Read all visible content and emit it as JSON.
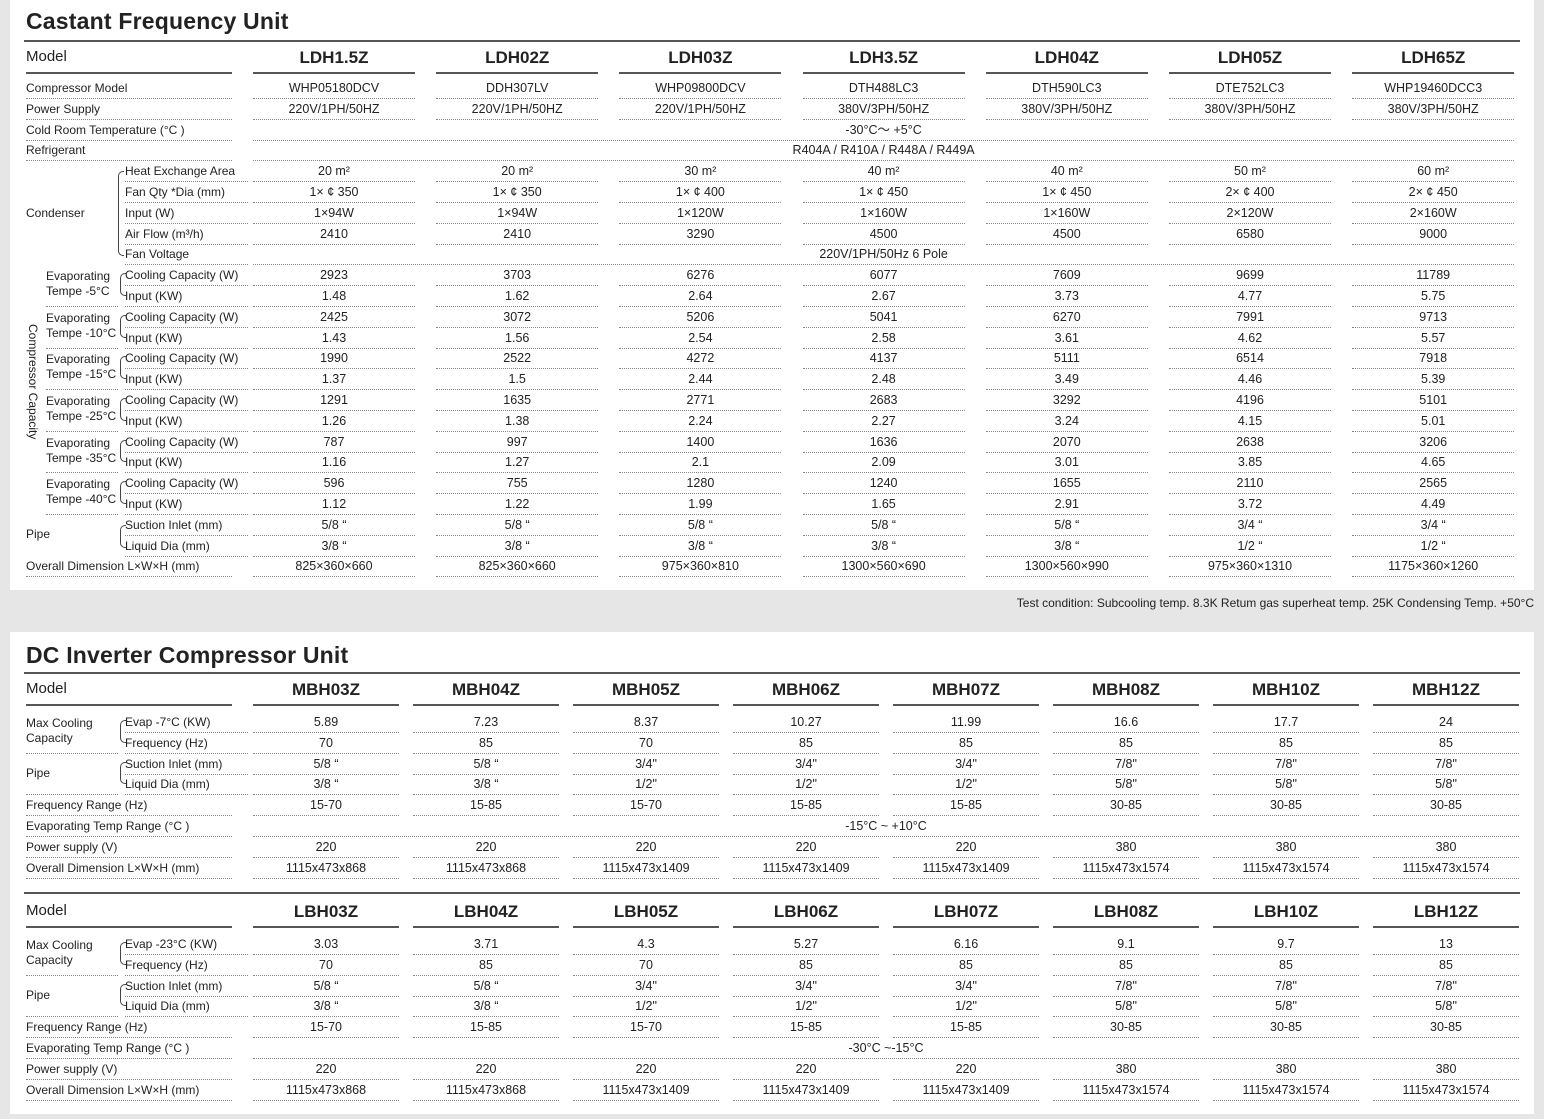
{
  "unit1": {
    "title": "Castant Frequency Unit",
    "model_label": "Model",
    "models": [
      "LDH1.5Z",
      "LDH02Z",
      "LDH03Z",
      "LDH3.5Z",
      "LDH04Z",
      "LDH05Z",
      "LDH65Z"
    ],
    "rows": [
      {
        "label": "Compressor Model",
        "values": [
          "WHP05180DCV",
          "DDH307LV",
          "WHP09800DCV",
          "DTH488LC3",
          "DTH590LC3",
          "DTE752LC3",
          "WHP19460DCC3"
        ]
      },
      {
        "label": "Power Supply",
        "values": [
          "220V/1PH/50HZ",
          "220V/1PH/50HZ",
          "220V/1PH/50HZ",
          "380V/3PH/50HZ",
          "380V/3PH/50HZ",
          "380V/3PH/50HZ",
          "380V/3PH/50HZ"
        ]
      },
      {
        "label": "Cold Room Temperature (°C )",
        "span": "-30°C～ +5°C"
      },
      {
        "label": "Refrigerant",
        "span": "R404A / R410A / R448A / R449A"
      },
      {
        "sub": "Heat Exchange Area",
        "values": [
          "20 m²",
          "20 m²",
          "30 m²",
          "40 m²",
          "40 m²",
          "50 m²",
          "60 m²"
        ]
      },
      {
        "sub": "Fan Qty *Dia (mm)",
        "values": [
          "1× ¢ 350",
          "1× ¢ 350",
          "1× ¢ 400",
          "1× ¢ 450",
          "1× ¢ 450",
          "2× ¢ 400",
          "2× ¢ 450"
        ]
      },
      {
        "sub": "Input (W)",
        "values": [
          "1×94W",
          "1×94W",
          "1×120W",
          "1×160W",
          "1×160W",
          "2×120W",
          "2×160W"
        ]
      },
      {
        "sub": "Air Flow (m³/h)",
        "values": [
          "2410",
          "2410",
          "3290",
          "4500",
          "4500",
          "6580",
          "9000"
        ]
      },
      {
        "sub": "Fan Voltage",
        "span": "220V/1PH/50Hz 6 Pole"
      },
      {
        "sub": "Cooling Capacity (W)",
        "values": [
          "2923",
          "3703",
          "6276",
          "6077",
          "7609",
          "9699",
          "11789"
        ]
      },
      {
        "sub": "Input (KW)",
        "values": [
          "1.48",
          "1.62",
          "2.64",
          "2.67",
          "3.73",
          "4.77",
          "5.75"
        ]
      },
      {
        "sub": "Cooling Capacity (W)",
        "values": [
          "2425",
          "3072",
          "5206",
          "5041",
          "6270",
          "7991",
          "9713"
        ]
      },
      {
        "sub": "Input (KW)",
        "values": [
          "1.43",
          "1.56",
          "2.54",
          "2.58",
          "3.61",
          "4.62",
          "5.57"
        ]
      },
      {
        "sub": "Cooling Capacity (W)",
        "values": [
          "1990",
          "2522",
          "4272",
          "4137",
          "5111",
          "6514",
          "7918"
        ]
      },
      {
        "sub": "Input (KW)",
        "values": [
          "1.37",
          "1.5",
          "2.44",
          "2.48",
          "3.49",
          "4.46",
          "5.39"
        ]
      },
      {
        "sub": "Cooling Capacity (W)",
        "values": [
          "1291",
          "1635",
          "2771",
          "2683",
          "3292",
          "4196",
          "5101"
        ]
      },
      {
        "sub": "Input (KW)",
        "values": [
          "1.26",
          "1.38",
          "2.24",
          "2.27",
          "3.24",
          "4.15",
          "5.01"
        ]
      },
      {
        "sub": "Cooling Capacity (W)",
        "values": [
          "787",
          "997",
          "1400",
          "1636",
          "2070",
          "2638",
          "3206"
        ]
      },
      {
        "sub": "Input (KW)",
        "values": [
          "1.16",
          "1.27",
          "2.1",
          "2.09",
          "3.01",
          "3.85",
          "4.65"
        ]
      },
      {
        "sub": "Cooling Capacity (W)",
        "values": [
          "596",
          "755",
          "1280",
          "1240",
          "1655",
          "2110",
          "2565"
        ]
      },
      {
        "sub": "Input (KW)",
        "values": [
          "1.12",
          "1.22",
          "1.99",
          "1.65",
          "2.91",
          "3.72",
          "4.49"
        ]
      },
      {
        "sub": "Suction Inlet (mm)",
        "values": [
          "5/8 “",
          "5/8 “",
          "5/8 “",
          "5/8 “",
          "5/8 “",
          "3/4 “",
          "3/4 “"
        ]
      },
      {
        "sub": "Liquid Dia (mm)",
        "values": [
          "3/8 “",
          "3/8 “",
          "3/8 “",
          "3/8 “",
          "3/8 “",
          "1/2 “",
          "1/2 “"
        ]
      },
      {
        "label": "Overall Dimension L×W×H (mm)",
        "values": [
          "825×360×660",
          "825×360×660",
          "975×360×810",
          "1300×560×690",
          "1300×560×990",
          "975×360×1310",
          "1175×360×1260"
        ]
      }
    ],
    "groups": {
      "condenser": "Condenser",
      "compressor_capacity": "Compressor Capacity",
      "pipe": "Pipe",
      "evap": [
        [
          "Evaporating",
          "Tempe -5°C"
        ],
        [
          "Evaporating",
          "Tempe -10°C"
        ],
        [
          "Evaporating",
          "Tempe -15°C"
        ],
        [
          "Evaporating",
          "Tempe -25°C"
        ],
        [
          "Evaporating",
          "Tempe -35°C"
        ],
        [
          "Evaporating",
          "Tempe -40°C"
        ]
      ]
    },
    "note": "Test condition: Subcooling temp. 8.3K   Retum gas superheat temp. 25K    Condensing Temp. +50°C"
  },
  "unit2": {
    "title": "DC Inverter Compressor Unit",
    "tables": [
      {
        "model_label": "Model",
        "models": [
          "MBH03Z",
          "MBH04Z",
          "MBH05Z",
          "MBH06Z",
          "MBH07Z",
          "MBH08Z",
          "MBH10Z",
          "MBH12Z"
        ],
        "group_max": [
          "Max Cooling",
          "Capacity"
        ],
        "group_pipe": "Pipe",
        "rows": [
          {
            "sub": "Evap -7°C (KW)",
            "values": [
              "5.89",
              "7.23",
              "8.37",
              "10.27",
              "11.99",
              "16.6",
              "17.7",
              "24"
            ]
          },
          {
            "sub": "Frequency (Hz)",
            "values": [
              "70",
              "85",
              "70",
              "85",
              "85",
              "85",
              "85",
              "85"
            ]
          },
          {
            "sub": "Suction Inlet (mm)",
            "values": [
              "5/8 “",
              "5/8 “",
              "3/4\"",
              "3/4\"",
              "3/4\"",
              "7/8\"",
              "7/8\"",
              "7/8\""
            ]
          },
          {
            "sub": "Liquid Dia (mm)",
            "values": [
              "3/8 “",
              "3/8 “",
              "1/2\"",
              "1/2\"",
              "1/2\"",
              "5/8\"",
              "5/8\"",
              "5/8\""
            ]
          },
          {
            "label": "Frequency Range (Hz)",
            "values": [
              "15-70",
              "15-85",
              "15-70",
              "15-85",
              "15-85",
              "30-85",
              "30-85",
              "30-85"
            ]
          },
          {
            "label": "Evaporating Temp Range (°C )",
            "span": "-15°C ~ +10°C"
          },
          {
            "label": "Power supply (V)",
            "values": [
              "220",
              "220",
              "220",
              "220",
              "220",
              "380",
              "380",
              "380"
            ]
          },
          {
            "label": "Overall Dimension L×W×H (mm)",
            "values": [
              "1115x473x868",
              "1115x473x868",
              "1115x473x1409",
              "1115x473x1409",
              "1115x473x1409",
              "1115x473x1574",
              "1115x473x1574",
              "1115x473x1574"
            ]
          }
        ]
      },
      {
        "model_label": "Model",
        "models": [
          "LBH03Z",
          "LBH04Z",
          "LBH05Z",
          "LBH06Z",
          "LBH07Z",
          "LBH08Z",
          "LBH10Z",
          "LBH12Z"
        ],
        "group_max": [
          "Max Cooling",
          "Capacity"
        ],
        "group_pipe": "Pipe",
        "rows": [
          {
            "sub": "Evap -23°C (KW)",
            "values": [
              "3.03",
              "3.71",
              "4.3",
              "5.27",
              "6.16",
              "9.1",
              "9.7",
              "13"
            ]
          },
          {
            "sub": "Frequency (Hz)",
            "values": [
              "70",
              "85",
              "70",
              "85",
              "85",
              "85",
              "85",
              "85"
            ]
          },
          {
            "sub": "Suction Inlet (mm)",
            "values": [
              "5/8 “",
              "5/8 “",
              "3/4\"",
              "3/4\"",
              "3/4\"",
              "7/8\"",
              "7/8\"",
              "7/8\""
            ]
          },
          {
            "sub": "Liquid Dia (mm)",
            "values": [
              "3/8 “",
              "3/8 “",
              "1/2\"",
              "1/2\"",
              "1/2\"",
              "5/8\"",
              "5/8\"",
              "5/8\""
            ]
          },
          {
            "label": "Frequency Range (Hz)",
            "values": [
              "15-70",
              "15-85",
              "15-70",
              "15-85",
              "15-85",
              "30-85",
              "30-85",
              "30-85"
            ]
          },
          {
            "label": "Evaporating Temp Range (°C )",
            "span": "-30°C ~-15°C"
          },
          {
            "label": "Power supply (V)",
            "values": [
              "220",
              "220",
              "220",
              "220",
              "220",
              "380",
              "380",
              "380"
            ]
          },
          {
            "label": "Overall Dimension L×W×H (mm)",
            "values": [
              "1115x473x868",
              "1115x473x868",
              "1115x473x1409",
              "1115x473x1409",
              "1115x473x1409",
              "1115x473x1574",
              "1115x473x1574",
              "1115x473x1574"
            ]
          }
        ]
      }
    ]
  }
}
